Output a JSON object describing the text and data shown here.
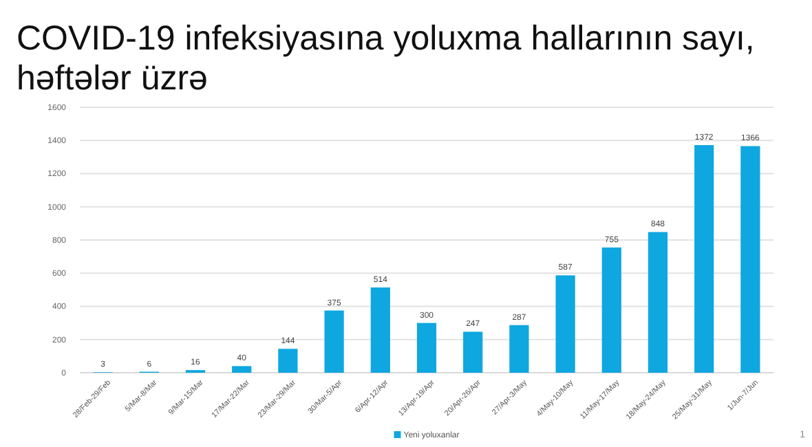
{
  "chart_data": {
    "type": "bar",
    "title": "COVID-19 infeksiyasına yoluxma hallarının sayı, həftələr üzrə",
    "categories": [
      "28/Feb-29/Feb",
      "5/Mar-8/Mar",
      "9/Mar-15/Mar",
      "17/Mar-22/Mar",
      "23/Mar-29/Mar",
      "30/Mar-5/Apr",
      "6/Apr-12/Apr",
      "13/Apr-19/Apr",
      "20/Apr-26/Apr",
      "27/Apr-3/May",
      "4/May-10/May",
      "11/May-17/May",
      "18/May-24/May",
      "25/May-31/May",
      "1/Jun-7/Jun"
    ],
    "series": [
      {
        "name": "Yeni yoluxanlar",
        "color": "#0fa7e0",
        "values": [
          3,
          6,
          16,
          40,
          144,
          375,
          514,
          300,
          247,
          287,
          587,
          755,
          848,
          1372,
          1366
        ]
      }
    ],
    "ylim": [
      0,
      1600
    ],
    "yticks": [
      0,
      200,
      400,
      600,
      800,
      1000,
      1200,
      1400,
      1600
    ],
    "grid": "y",
    "legend": "bottom",
    "data_labels": true,
    "annotations": [
      "1"
    ]
  }
}
